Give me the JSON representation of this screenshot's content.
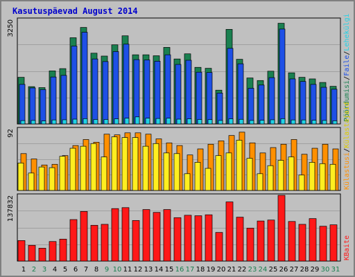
{
  "title": "Kasutuspäevad August 2014",
  "colors": {
    "pageviews": "#1e50e6",
    "hits": "#1a8050",
    "visits": "#20d2e6",
    "files": "#1e50e6",
    "visits_mid": "#ff9000",
    "sites": "#ffee20",
    "kbytes": "#ff1818",
    "weekday_label": "#000000",
    "weekend_label": "#1a8050"
  },
  "legends": {
    "top": [
      {
        "text": "Pöördumisi",
        "color": "#1a8050"
      },
      {
        "text": "Faile",
        "color": "#1e50e6"
      },
      {
        "text": "Lehekülgi",
        "color": "#20d2e6"
      }
    ],
    "middle": [
      {
        "text": "Külastusi",
        "color": "#ff9000"
      },
      {
        "text": "Külastajaid",
        "color": "#ddcc00"
      }
    ],
    "bottom": [
      {
        "text": "KBaite",
        "color": "#ff1818"
      }
    ],
    "separator": "/"
  },
  "chart_data": [
    {
      "type": "bar",
      "panel": "top",
      "ymax_label": "3250",
      "ylim": [
        0,
        3250
      ],
      "categories": [
        "1",
        "2",
        "3",
        "4",
        "5",
        "6",
        "7",
        "8",
        "9",
        "10",
        "11",
        "12",
        "13",
        "14",
        "15",
        "16",
        "17",
        "18",
        "19",
        "20",
        "21",
        "22",
        "23",
        "24",
        "25",
        "26",
        "27",
        "28",
        "29",
        "30",
        "31"
      ],
      "weekend_days": [
        "2",
        "3",
        "9",
        "10",
        "16",
        "17",
        "23",
        "24",
        "30",
        "31"
      ],
      "series": [
        {
          "name": "Pöördumisi",
          "values": [
            1450,
            1160,
            1130,
            1650,
            1720,
            2680,
            3000,
            2200,
            2110,
            2460,
            2740,
            2150,
            2150,
            2120,
            2380,
            2020,
            2180,
            1760,
            1730,
            1050,
            2940,
            2010,
            1430,
            1350,
            1640,
            3130,
            1590,
            1450,
            1400,
            1290,
            1170
          ]
        },
        {
          "name": "Faile",
          "values": [
            1230,
            1120,
            1070,
            1460,
            1510,
            2420,
            2850,
            2020,
            1940,
            2250,
            2480,
            2000,
            1990,
            1950,
            2150,
            1850,
            1980,
            1610,
            1600,
            960,
            2350,
            1870,
            1110,
            1210,
            1440,
            2950,
            1400,
            1320,
            1230,
            1140,
            1080
          ]
        },
        {
          "name": "Lehekülgi",
          "values": [
            105,
            110,
            95,
            125,
            130,
            150,
            165,
            140,
            140,
            160,
            180,
            220,
            180,
            170,
            180,
            150,
            160,
            140,
            135,
            110,
            160,
            145,
            110,
            115,
            130,
            165,
            125,
            125,
            115,
            110,
            100
          ]
        }
      ]
    },
    {
      "type": "bar",
      "panel": "middle",
      "ymax_label": "92",
      "ylim": [
        0,
        92
      ],
      "categories": [
        "1",
        "2",
        "3",
        "4",
        "5",
        "6",
        "7",
        "8",
        "9",
        "10",
        "11",
        "12",
        "13",
        "14",
        "15",
        "16",
        "17",
        "18",
        "19",
        "20",
        "21",
        "22",
        "23",
        "24",
        "25",
        "26",
        "27",
        "28",
        "29",
        "30",
        "31"
      ],
      "series": [
        {
          "name": "Külastusi",
          "values": [
            55,
            47,
            38,
            39,
            52,
            67,
            76,
            72,
            84,
            83,
            86,
            86,
            84,
            77,
            71,
            67,
            53,
            62,
            69,
            74,
            82,
            87,
            71,
            56,
            64,
            69,
            76,
            54,
            63,
            69,
            62
          ]
        },
        {
          "name": "Külastajaid",
          "values": [
            41,
            26,
            35,
            34,
            51,
            63,
            66,
            70,
            50,
            80,
            79,
            79,
            66,
            70,
            56,
            55,
            25,
            42,
            33,
            52,
            56,
            75,
            48,
            25,
            37,
            45,
            50,
            23,
            42,
            40,
            39
          ]
        }
      ]
    },
    {
      "type": "bar",
      "panel": "bottom",
      "ymax_label": "137832",
      "ylim": [
        0,
        137832
      ],
      "categories": [
        "1",
        "2",
        "3",
        "4",
        "5",
        "6",
        "7",
        "8",
        "9",
        "10",
        "11",
        "12",
        "13",
        "14",
        "15",
        "16",
        "17",
        "18",
        "19",
        "20",
        "21",
        "22",
        "23",
        "24",
        "25",
        "26",
        "27",
        "28",
        "29",
        "30",
        "31"
      ],
      "series": [
        {
          "name": "KBaite",
          "values": [
            43000,
            33000,
            27000,
            41000,
            46000,
            87000,
            104000,
            75000,
            77000,
            110000,
            112000,
            85000,
            108000,
            102000,
            108000,
            91000,
            96000,
            95000,
            97000,
            60000,
            124000,
            92000,
            69000,
            84000,
            86000,
            140000,
            83000,
            77000,
            89000,
            73000,
            76000
          ]
        }
      ]
    }
  ]
}
